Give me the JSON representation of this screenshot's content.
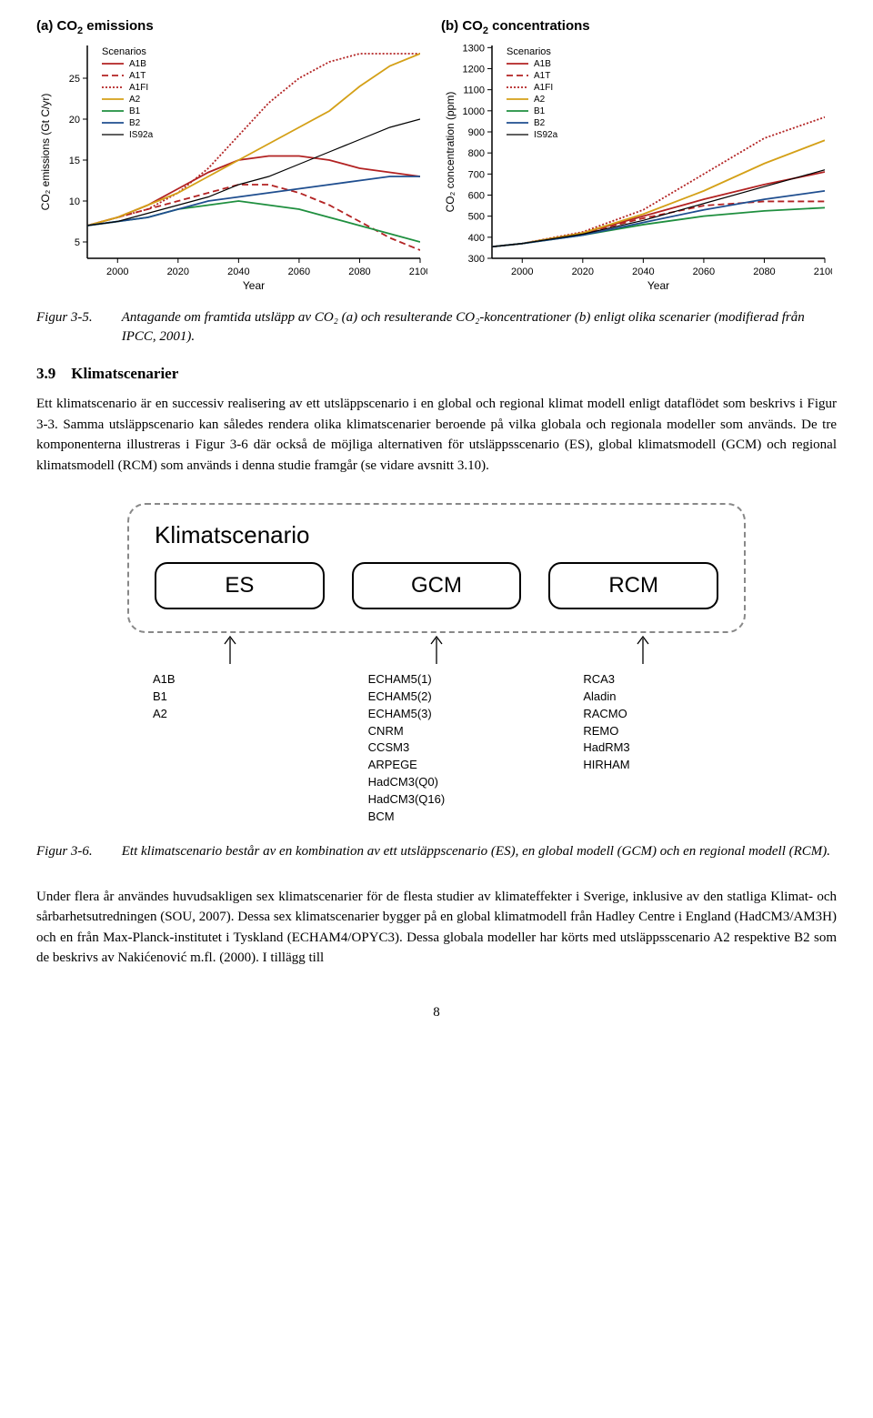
{
  "chart_a": {
    "title_prefix": "(a) CO",
    "title_sub": "2",
    "title_suffix": " emissions",
    "type": "line",
    "xlabel": "Year",
    "ylabel": "CO₂ emissions (Gt C/yr)",
    "xlim": [
      1990,
      2100
    ],
    "ylim": [
      3,
      29
    ],
    "xticks": [
      2000,
      2020,
      2040,
      2060,
      2080,
      2100
    ],
    "yticks": [
      5,
      10,
      15,
      20,
      25
    ],
    "label_fontsize": 12,
    "tick_fontsize": 11,
    "legend_title": "Scenarios",
    "legend_fontsize": 10,
    "background_color": "#ffffff",
    "axis_color": "#000000",
    "series": [
      {
        "name": "A1B",
        "color": "#b22222",
        "dash": "none",
        "width": 1.8,
        "x": [
          1990,
          2000,
          2010,
          2020,
          2030,
          2040,
          2050,
          2060,
          2070,
          2080,
          2090,
          2100
        ],
        "y": [
          7,
          8,
          9.5,
          11.5,
          13.5,
          15,
          15.5,
          15.5,
          15,
          14,
          13.5,
          13
        ]
      },
      {
        "name": "A1T",
        "color": "#b22222",
        "dash": "7,4",
        "width": 1.8,
        "x": [
          1990,
          2000,
          2010,
          2020,
          2030,
          2040,
          2050,
          2060,
          2070,
          2080,
          2090,
          2100
        ],
        "y": [
          7,
          8,
          9,
          10,
          11,
          12,
          12,
          11,
          9.5,
          7.5,
          5.5,
          4
        ]
      },
      {
        "name": "A1FI",
        "color": "#b22222",
        "dash": "2,2",
        "width": 1.8,
        "x": [
          1990,
          2000,
          2010,
          2020,
          2030,
          2040,
          2050,
          2060,
          2070,
          2080,
          2090,
          2100
        ],
        "y": [
          7,
          8,
          9,
          11,
          14,
          18,
          22,
          25,
          27,
          28,
          28,
          28
        ]
      },
      {
        "name": "A2",
        "color": "#d4a017",
        "dash": "none",
        "width": 1.8,
        "x": [
          1990,
          2000,
          2010,
          2020,
          2030,
          2040,
          2050,
          2060,
          2070,
          2080,
          2090,
          2100
        ],
        "y": [
          7,
          8,
          9.5,
          11,
          13,
          15,
          17,
          19,
          21,
          24,
          26.5,
          28
        ]
      },
      {
        "name": "B1",
        "color": "#1f8f3f",
        "dash": "none",
        "width": 1.8,
        "x": [
          1990,
          2000,
          2010,
          2020,
          2030,
          2040,
          2050,
          2060,
          2070,
          2080,
          2090,
          2100
        ],
        "y": [
          7,
          7.5,
          8,
          9,
          9.5,
          10,
          9.5,
          9,
          8,
          7,
          6,
          5
        ]
      },
      {
        "name": "B2",
        "color": "#1f4e8f",
        "dash": "none",
        "width": 1.8,
        "x": [
          1990,
          2000,
          2010,
          2020,
          2030,
          2040,
          2050,
          2060,
          2070,
          2080,
          2090,
          2100
        ],
        "y": [
          7,
          7.5,
          8,
          9,
          10,
          10.5,
          11,
          11.5,
          12,
          12.5,
          13,
          13
        ]
      },
      {
        "name": "IS92a",
        "color": "#000000",
        "dash": "none",
        "width": 1.2,
        "x": [
          1990,
          2000,
          2010,
          2020,
          2030,
          2040,
          2050,
          2060,
          2070,
          2080,
          2090,
          2100
        ],
        "y": [
          7,
          7.5,
          8.5,
          9.5,
          10.5,
          12,
          13,
          14.5,
          16,
          17.5,
          19,
          20
        ]
      }
    ]
  },
  "chart_b": {
    "title_prefix": "(b) CO",
    "title_sub": "2",
    "title_suffix": " concentrations",
    "type": "line",
    "xlabel": "Year",
    "ylabel": "CO₂ concentration (ppm)",
    "xlim": [
      1990,
      2100
    ],
    "ylim": [
      300,
      1310
    ],
    "xticks": [
      2000,
      2020,
      2040,
      2060,
      2080,
      2100
    ],
    "yticks": [
      300,
      400,
      500,
      600,
      700,
      800,
      900,
      1000,
      1100,
      1200,
      1300
    ],
    "label_fontsize": 12,
    "tick_fontsize": 11,
    "legend_title": "Scenarios",
    "legend_fontsize": 10,
    "background_color": "#ffffff",
    "axis_color": "#000000",
    "series": [
      {
        "name": "A1B",
        "color": "#b22222",
        "dash": "none",
        "width": 1.8,
        "x": [
          1990,
          2000,
          2020,
          2040,
          2060,
          2080,
          2100
        ],
        "y": [
          355,
          370,
          420,
          500,
          580,
          650,
          710
        ]
      },
      {
        "name": "A1T",
        "color": "#b22222",
        "dash": "7,4",
        "width": 1.8,
        "x": [
          1990,
          2000,
          2020,
          2040,
          2060,
          2080,
          2100
        ],
        "y": [
          355,
          370,
          420,
          490,
          550,
          570,
          570
        ]
      },
      {
        "name": "A1FI",
        "color": "#b22222",
        "dash": "2,2",
        "width": 1.8,
        "x": [
          1990,
          2000,
          2020,
          2040,
          2060,
          2080,
          2100
        ],
        "y": [
          355,
          370,
          425,
          530,
          700,
          870,
          970
        ]
      },
      {
        "name": "A2",
        "color": "#d4a017",
        "dash": "none",
        "width": 1.8,
        "x": [
          1990,
          2000,
          2020,
          2040,
          2060,
          2080,
          2100
        ],
        "y": [
          355,
          370,
          420,
          510,
          620,
          750,
          860
        ]
      },
      {
        "name": "B1",
        "color": "#1f8f3f",
        "dash": "none",
        "width": 1.8,
        "x": [
          1990,
          2000,
          2020,
          2040,
          2060,
          2080,
          2100
        ],
        "y": [
          355,
          370,
          410,
          460,
          500,
          525,
          540
        ]
      },
      {
        "name": "B2",
        "color": "#1f4e8f",
        "dash": "none",
        "width": 1.8,
        "x": [
          1990,
          2000,
          2020,
          2040,
          2060,
          2080,
          2100
        ],
        "y": [
          355,
          370,
          410,
          470,
          530,
          580,
          620
        ]
      },
      {
        "name": "IS92a",
        "color": "#000000",
        "dash": "none",
        "width": 1.2,
        "x": [
          1990,
          2000,
          2020,
          2040,
          2060,
          2080,
          2100
        ],
        "y": [
          355,
          370,
          415,
          480,
          560,
          640,
          720
        ]
      }
    ]
  },
  "fig35": {
    "label": "Figur 3-5.",
    "text": "Antagande om framtida utsläpp av CO₂ (a) och resulterande CO₂-koncentrationer (b) enligt olika scenarier (modifierad från IPCC, 2001)."
  },
  "section": {
    "num": "3.9",
    "title": "Klimatscenarier"
  },
  "para1": "Ett klimatscenario är en successiv realisering av ett utsläppscenario i en global och regional klimat modell enligt dataflödet som beskrivs i Figur 3-3. Samma utsläppscenario kan således rendera olika klimatscenarier beroende på vilka globala och regionala modeller som används. De tre komponenterna illustreras i Figur 3-6 där också de möjliga alternativen för utsläppsscenario (ES), global klimatsmodell (GCM) och regional klimatsmodell (RCM) som används i denna studie framgår (se vidare avsnitt 3.10).",
  "diagram": {
    "title": "Klimatscenario",
    "boxes": [
      "ES",
      "GCM",
      "RCM"
    ],
    "border_color": "#888888",
    "box_border_color": "#000000",
    "lists": {
      "es": [
        "A1B",
        "B1",
        "A2"
      ],
      "gcm": [
        "ECHAM5(1)",
        "ECHAM5(2)",
        "ECHAM5(3)",
        "CNRM",
        "CCSM3",
        "ARPEGE",
        "HadCM3(Q0)",
        "HadCM3(Q16)",
        "BCM"
      ],
      "rcm": [
        "RCA3",
        "Aladin",
        "RACMO",
        "REMO",
        "HadRM3",
        "HIRHAM"
      ]
    }
  },
  "fig36": {
    "label": "Figur 3-6.",
    "text": "Ett klimatscenario består av en kombination av ett utsläppscenario (ES), en global modell (GCM) och en regional modell (RCM)."
  },
  "para2": "Under flera år användes huvudsakligen sex klimatscenarier för de flesta studier av klimateffekter i Sverige, inklusive av den statliga Klimat- och sårbarhetsutredningen (SOU, 2007). Dessa sex klimatscenarier bygger på en global klimatmodell från Hadley Centre i England (HadCM3/AM3H) och en från Max-Planck-institutet i Tyskland (ECHAM4/OPYC3). Dessa globala modeller har körts med utsläppsscenario A2 respektive B2 som de beskrivs av Nakićenović m.fl. (2000). I tillägg till",
  "page_number": "8"
}
